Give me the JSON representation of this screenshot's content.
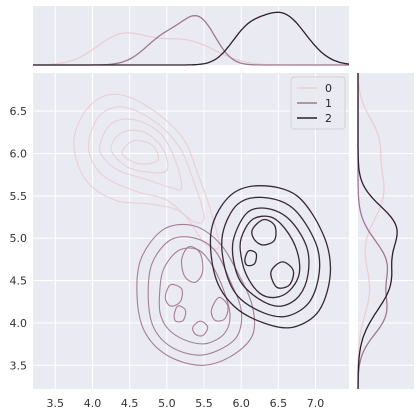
{
  "chart_data": {
    "type": "kde-jointplot",
    "title": "",
    "xlabel": "",
    "ylabel": "",
    "xlim": [
      3.2,
      7.45
    ],
    "ylim": [
      3.22,
      6.95
    ],
    "x_ticks": [
      "3.5",
      "4.0",
      "4.5",
      "5.0",
      "5.5",
      "6.0",
      "6.5",
      "7.0"
    ],
    "y_ticks": [
      "3.5",
      "4.0",
      "4.5",
      "5.0",
      "5.5",
      "6.0",
      "6.5"
    ],
    "grid": true,
    "legend_placement": "top-right",
    "series": [
      {
        "name": "0",
        "color": "#e9cfd3",
        "density_peak": [
          4.6,
          5.9
        ],
        "marginal_x_mode": 4.55,
        "marginal_y_mode": 5.55,
        "contours": [
          [
            [
              3.75,
              6.15
            ],
            [
              3.95,
              6.55
            ],
            [
              4.3,
              6.7
            ],
            [
              4.75,
              6.55
            ],
            [
              5.2,
              6.2
            ],
            [
              5.4,
              5.8
            ],
            [
              5.6,
              5.3
            ],
            [
              5.7,
              4.9
            ],
            [
              5.5,
              4.95
            ],
            [
              5.2,
              5.3
            ],
            [
              4.8,
              5.4
            ],
            [
              4.3,
              5.45
            ],
            [
              3.9,
              5.7
            ]
          ],
          [
            [
              3.95,
              6.15
            ],
            [
              4.1,
              6.45
            ],
            [
              4.4,
              6.55
            ],
            [
              4.8,
              6.4
            ],
            [
              5.15,
              6.1
            ],
            [
              5.35,
              5.7
            ],
            [
              5.5,
              5.25
            ],
            [
              5.35,
              5.2
            ],
            [
              5.0,
              5.45
            ],
            [
              4.6,
              5.55
            ],
            [
              4.2,
              5.7
            ],
            [
              4.0,
              5.9
            ]
          ],
          [
            [
              4.1,
              6.1
            ],
            [
              4.25,
              6.35
            ],
            [
              4.55,
              6.4
            ],
            [
              4.9,
              6.25
            ],
            [
              5.1,
              5.95
            ],
            [
              5.2,
              5.6
            ],
            [
              5.05,
              5.6
            ],
            [
              4.7,
              5.7
            ],
            [
              4.35,
              5.8
            ],
            [
              4.15,
              5.95
            ]
          ],
          [
            [
              4.25,
              6.05
            ],
            [
              4.4,
              6.25
            ],
            [
              4.7,
              6.25
            ],
            [
              4.95,
              6.05
            ],
            [
              5.0,
              5.8
            ],
            [
              4.75,
              5.78
            ],
            [
              4.45,
              5.85
            ]
          ],
          [
            [
              4.4,
              6.0
            ],
            [
              4.55,
              6.15
            ],
            [
              4.8,
              6.1
            ],
            [
              4.88,
              5.92
            ],
            [
              4.62,
              5.88
            ]
          ]
        ]
      },
      {
        "name": "1",
        "color": "#a07892",
        "density_peak": [
          5.35,
          4.7
        ],
        "marginal_x_mode": 5.35,
        "marginal_y_mode": 4.45,
        "contours": [
          [
            [
              4.6,
              4.3
            ],
            [
              4.65,
              4.75
            ],
            [
              4.95,
              5.1
            ],
            [
              5.35,
              5.15
            ],
            [
              5.7,
              4.95
            ],
            [
              5.95,
              4.6
            ],
            [
              6.15,
              4.2
            ],
            [
              6.15,
              3.85
            ],
            [
              5.85,
              3.6
            ],
            [
              5.45,
              3.5
            ],
            [
              5.0,
              3.62
            ],
            [
              4.7,
              3.9
            ]
          ],
          [
            [
              4.75,
              4.3
            ],
            [
              4.8,
              4.7
            ],
            [
              5.05,
              4.98
            ],
            [
              5.38,
              5.0
            ],
            [
              5.65,
              4.85
            ],
            [
              5.85,
              4.5
            ],
            [
              6.0,
              4.15
            ],
            [
              5.95,
              3.85
            ],
            [
              5.7,
              3.68
            ],
            [
              5.4,
              3.62
            ],
            [
              5.05,
              3.72
            ],
            [
              4.82,
              3.95
            ]
          ],
          [
            [
              4.9,
              4.3
            ],
            [
              4.95,
              4.62
            ],
            [
              5.15,
              4.85
            ],
            [
              5.4,
              4.87
            ],
            [
              5.58,
              4.72
            ],
            [
              5.75,
              4.42
            ],
            [
              5.85,
              4.1
            ],
            [
              5.78,
              3.88
            ],
            [
              5.55,
              3.76
            ],
            [
              5.3,
              3.78
            ],
            [
              5.05,
              3.9
            ],
            [
              4.92,
              4.08
            ]
          ],
          [
            [
              5.2,
              4.75
            ],
            [
              5.3,
              4.9
            ],
            [
              5.45,
              4.82
            ],
            [
              5.48,
              4.6
            ],
            [
              5.38,
              4.48
            ],
            [
              5.24,
              4.55
            ]
          ],
          [
            [
              4.98,
              4.3
            ],
            [
              5.05,
              4.45
            ],
            [
              5.2,
              4.4
            ],
            [
              5.18,
              4.25
            ],
            [
              5.05,
              4.2
            ]
          ],
          [
            [
              5.1,
              4.1
            ],
            [
              5.15,
              4.2
            ],
            [
              5.25,
              4.15
            ],
            [
              5.22,
              4.03
            ],
            [
              5.12,
              4.02
            ]
          ],
          [
            [
              5.6,
              4.15
            ],
            [
              5.7,
              4.3
            ],
            [
              5.82,
              4.2
            ],
            [
              5.78,
              4.05
            ],
            [
              5.65,
              4.03
            ]
          ],
          [
            [
              5.35,
              3.95
            ],
            [
              5.45,
              4.02
            ],
            [
              5.55,
              3.95
            ],
            [
              5.48,
              3.85
            ],
            [
              5.38,
              3.87
            ]
          ]
        ]
      },
      {
        "name": "2",
        "color": "#2d1e2f",
        "density_peak": [
          6.35,
          4.9
        ],
        "marginal_x_mode": 6.35,
        "marginal_y_mode": 4.7,
        "contours": [
          [
            [
              5.6,
              5.1
            ],
            [
              5.85,
              5.5
            ],
            [
              6.25,
              5.62
            ],
            [
              6.75,
              5.5
            ],
            [
              7.1,
              5.05
            ],
            [
              7.2,
              4.6
            ],
            [
              7.05,
              4.15
            ],
            [
              6.7,
              3.95
            ],
            [
              6.3,
              4.0
            ],
            [
              5.9,
              4.2
            ],
            [
              5.65,
              4.55
            ]
          ],
          [
            [
              5.75,
              5.05
            ],
            [
              5.95,
              5.4
            ],
            [
              6.3,
              5.48
            ],
            [
              6.7,
              5.35
            ],
            [
              7.0,
              4.95
            ],
            [
              7.05,
              4.6
            ],
            [
              6.92,
              4.25
            ],
            [
              6.62,
              4.08
            ],
            [
              6.3,
              4.12
            ],
            [
              5.95,
              4.32
            ],
            [
              5.78,
              4.65
            ]
          ],
          [
            [
              5.9,
              5.0
            ],
            [
              6.08,
              5.3
            ],
            [
              6.35,
              5.35
            ],
            [
              6.65,
              5.22
            ],
            [
              6.88,
              4.9
            ],
            [
              6.9,
              4.58
            ],
            [
              6.78,
              4.32
            ],
            [
              6.55,
              4.2
            ],
            [
              6.3,
              4.25
            ],
            [
              6.02,
              4.45
            ],
            [
              5.9,
              4.72
            ]
          ],
          [
            [
              6.0,
              5.0
            ],
            [
              6.15,
              5.22
            ],
            [
              6.4,
              5.25
            ],
            [
              6.6,
              5.1
            ],
            [
              6.75,
              4.85
            ],
            [
              6.78,
              4.58
            ],
            [
              6.65,
              4.38
            ],
            [
              6.45,
              4.3
            ],
            [
              6.25,
              4.35
            ],
            [
              6.08,
              4.55
            ],
            [
              6.0,
              4.78
            ]
          ],
          [
            [
              6.15,
              5.1
            ],
            [
              6.3,
              5.22
            ],
            [
              6.45,
              5.15
            ],
            [
              6.45,
              4.98
            ],
            [
              6.3,
              4.92
            ],
            [
              6.18,
              4.98
            ]
          ],
          [
            [
              6.4,
              4.6
            ],
            [
              6.55,
              4.72
            ],
            [
              6.7,
              4.62
            ],
            [
              6.65,
              4.45
            ],
            [
              6.48,
              4.42
            ]
          ],
          [
            [
              6.05,
              4.75
            ],
            [
              6.1,
              4.85
            ],
            [
              6.2,
              4.82
            ],
            [
              6.18,
              4.7
            ],
            [
              6.08,
              4.68
            ]
          ]
        ]
      }
    ]
  }
}
